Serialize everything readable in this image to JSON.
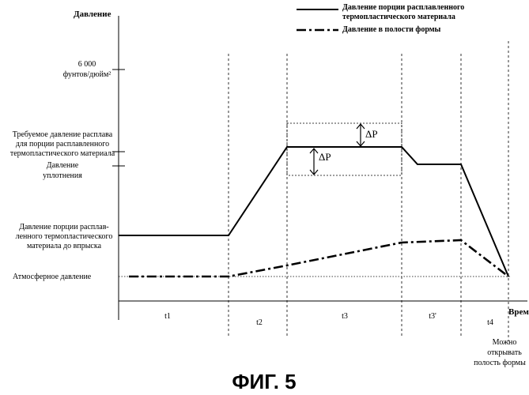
{
  "figure": {
    "caption": "ФИГ. 5",
    "y_axis_title": "Давление",
    "x_axis_title": "Время"
  },
  "legend": {
    "solid_line_label": [
      "Давление порции расплавленного",
      "термопластического материала"
    ],
    "dashdot_line_label": "Давление в полости формы"
  },
  "y_labels": {
    "psi_6000": [
      "6 000",
      "фунтов/дюйм²"
    ],
    "required_melt_pressure": [
      "Требуемое давление расплава",
      "для порции расплавленного",
      "термопластического материала"
    ],
    "packing_pressure": [
      "Давление",
      "уплотнения"
    ],
    "pre_injection_pressure": [
      "Давление порции расплав-",
      "ленного термопластического",
      "материала до впрыска"
    ],
    "atmospheric_pressure": "Атмосферное давление"
  },
  "delta_p_label": "ΔP",
  "time_intervals": [
    "t1",
    "t2",
    "t3",
    "t3'",
    "t4"
  ],
  "end_note": [
    "Можно",
    "открывать",
    "полость формы"
  ]
}
